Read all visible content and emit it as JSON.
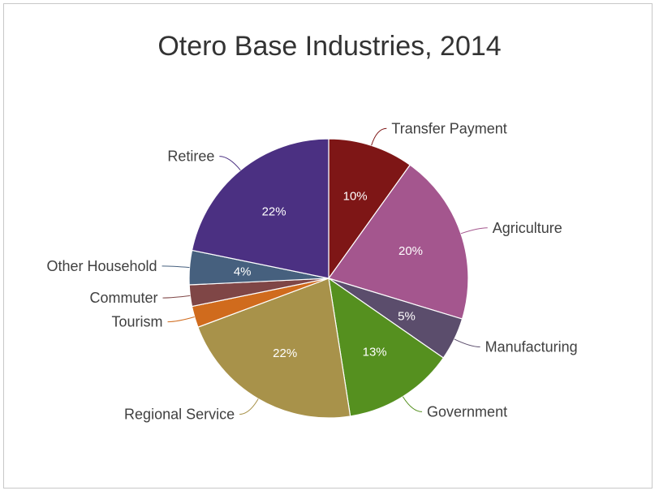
{
  "chart_data": {
    "type": "pie",
    "title": "Otero Base Industries, 2014",
    "slices": [
      {
        "label": "Transfer Payment",
        "value": 10,
        "value_label": "10%",
        "color": "#7e1616"
      },
      {
        "label": "Agriculture",
        "value": 20,
        "value_label": "20%",
        "color": "#a4568e"
      },
      {
        "label": "Manufacturing",
        "value": 5,
        "value_label": "5%",
        "color": "#5b4d6c"
      },
      {
        "label": "Government",
        "value": 13,
        "value_label": "13%",
        "color": "#55901f"
      },
      {
        "label": "Regional Service",
        "value": 22,
        "value_label": "22%",
        "color": "#a8924a"
      },
      {
        "label": "Tourism",
        "value": 2.5,
        "value_label": "",
        "color": "#d06b1d"
      },
      {
        "label": "Commuter",
        "value": 2.5,
        "value_label": "",
        "color": "#7f4646"
      },
      {
        "label": "Other Household",
        "value": 4,
        "value_label": "4%",
        "color": "#46607e"
      },
      {
        "label": "Retiree",
        "value": 22,
        "value_label": "22%",
        "color": "#4b3082"
      }
    ]
  }
}
